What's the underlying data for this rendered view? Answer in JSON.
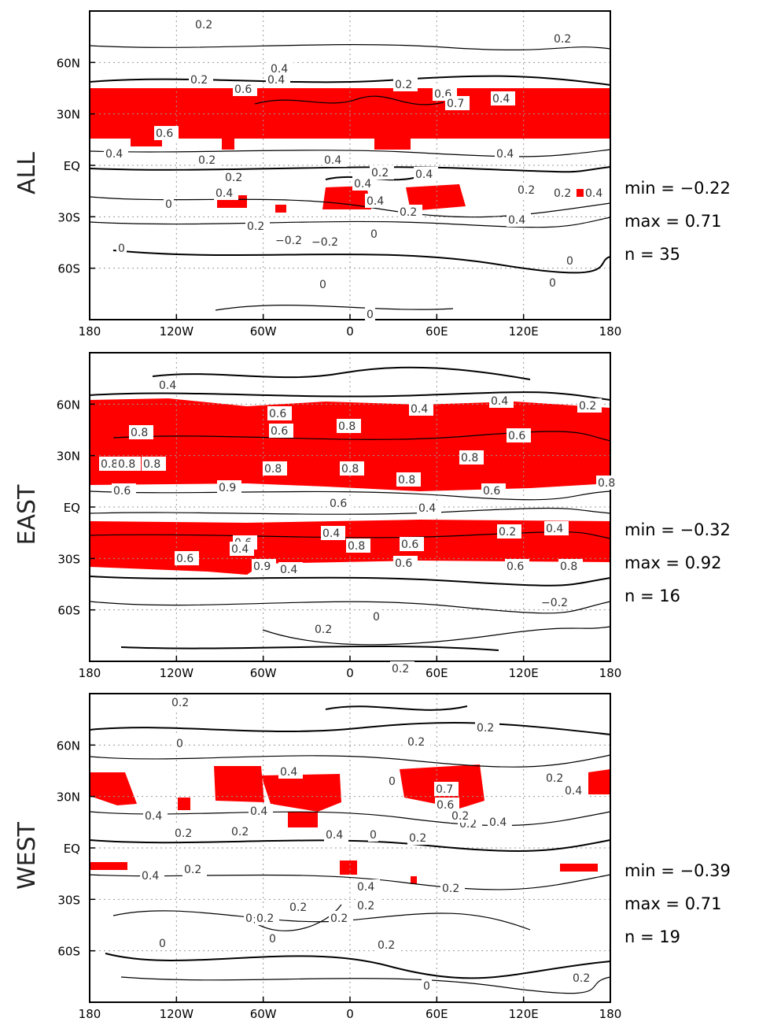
{
  "figure": {
    "lon_ticks": [
      "180",
      "120W",
      "60W",
      "0",
      "60E",
      "120E",
      "180"
    ],
    "lat_ticks": [
      "60N",
      "30N",
      "EQ",
      "30S",
      "60S"
    ],
    "colors": {
      "shade": "#ff0000",
      "contour": "#000000",
      "grid": "#9a9a9a",
      "label_bg": "#ffffff"
    }
  },
  "panels": [
    {
      "id": "all",
      "row_label": "ALL",
      "stats": {
        "min": "min  =  −0.22",
        "max": "max  =  0.71",
        "n": "n  =  35"
      },
      "contour_labels": [
        "0.2",
        "0.2",
        "0.4",
        "0.2",
        "0.6",
        "0.4",
        "0.2",
        "0.6",
        "0.7",
        "0.4",
        "0.6",
        "0.4",
        "0.2",
        "0.4",
        "0.4",
        "0.2",
        "0.4",
        "0.2",
        "0.4",
        "0.4",
        "0",
        "0.2",
        "0.2",
        "0.4",
        "0.4",
        "0.2",
        "0.4",
        "0",
        "0",
        "−0.2",
        "−0.2",
        "0",
        "0",
        "0",
        "0",
        "0.2"
      ]
    },
    {
      "id": "east",
      "row_label": "EAST",
      "stats": {
        "min": "min  =  −0.32",
        "max": "max  =  0.92",
        "n": "n  =  16"
      },
      "contour_labels": [
        "0.4",
        "0.6",
        "0.4",
        "0.4",
        "0.2",
        "0.8",
        "0.6",
        "0.8",
        "0.8",
        "0.6",
        "0.8",
        "0.8",
        "0.8",
        "0.8",
        "0.8",
        "0.8",
        "0.8",
        "0.6",
        "0.9",
        "0.6",
        "0.6",
        "0.4",
        "0.4",
        "0.2",
        "0.4",
        "0.6",
        "0.8",
        "0.8",
        "0.6",
        "0.6",
        "0.9",
        "0.4",
        "0.6",
        "0.6",
        "0.4",
        "−0.2",
        "0",
        "0.2",
        "0.2"
      ]
    },
    {
      "id": "west",
      "row_label": "WEST",
      "stats": {
        "min": "min  =  −0.39",
        "max": "max  =  0.71",
        "n": "n  =  19"
      },
      "contour_labels": [
        "0.2",
        "0.2",
        "0",
        "0.2",
        "0.4",
        "0.2",
        "0.7",
        "0.6",
        "0.2",
        "0.4",
        "0.4",
        "0.4",
        "0.2",
        "0.4",
        "0.2",
        "0.2",
        "0",
        "0.2",
        "0.4",
        "0.2",
        "0.4",
        "0.2",
        "0.2",
        "0.2",
        "0",
        "0.4",
        "0.2",
        "0",
        "0",
        "0.2",
        "0",
        "0.2",
        "0.2",
        "0"
      ]
    }
  ]
}
